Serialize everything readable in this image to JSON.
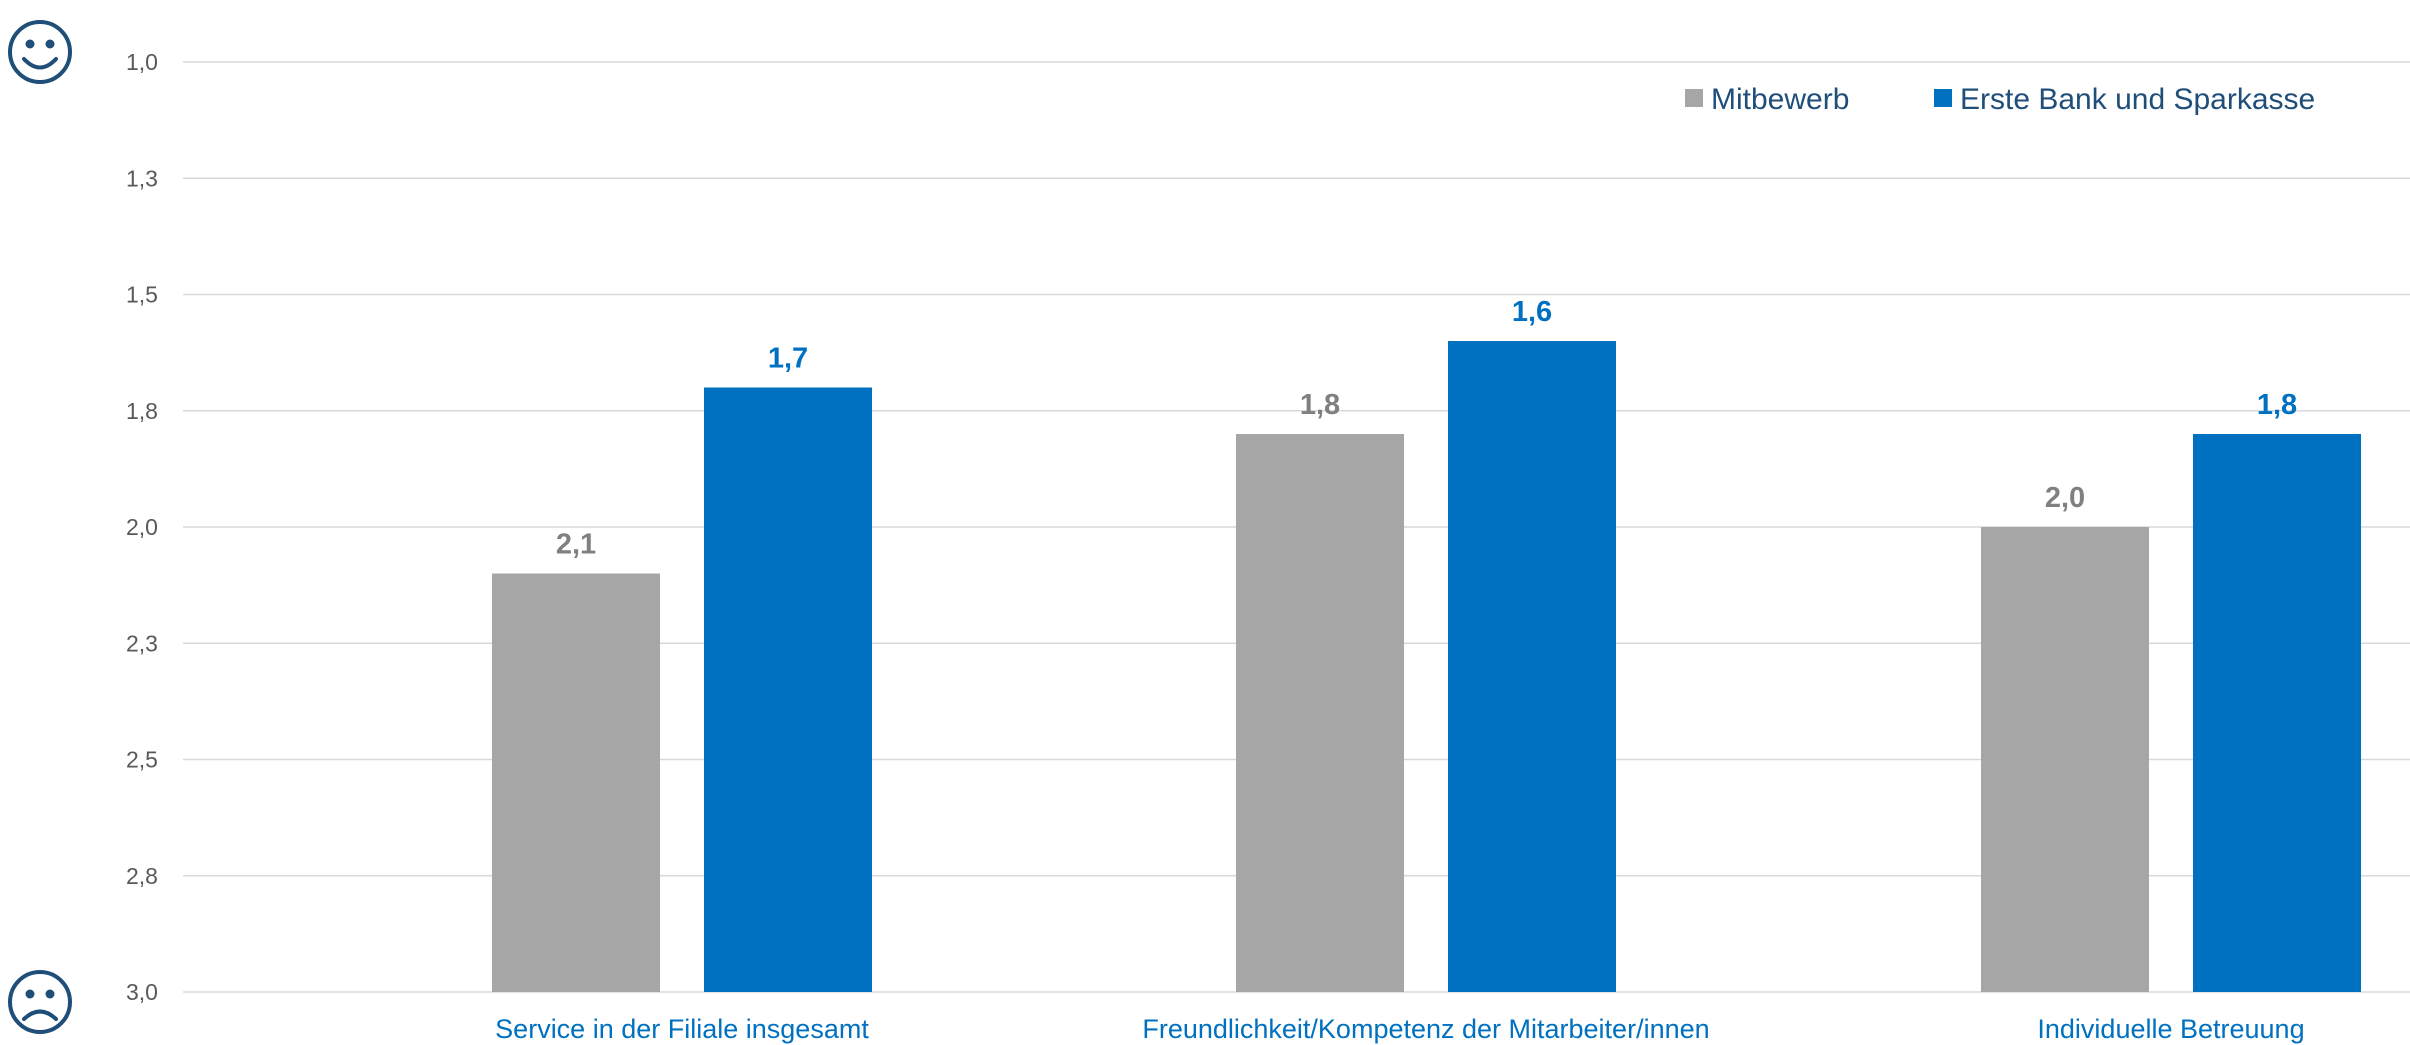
{
  "chart_data": {
    "type": "bar",
    "title": "",
    "xlabel": "",
    "ylabel": "",
    "y_inverted": true,
    "ylim": [
      1.0,
      3.0
    ],
    "y_ticks": [
      "1,0",
      "1,3",
      "1,5",
      "1,8",
      "2,0",
      "2,3",
      "2,5",
      "2,8",
      "3,0"
    ],
    "grid": true,
    "legend_position": "top-right",
    "top_icon": "smiley-happy-icon",
    "bottom_icon": "smiley-sad-icon",
    "categories": [
      "Service in der Filiale insgesamt",
      "Freundlichkeit/Kompetenz der Mitarbeiter/innen",
      "Individuelle Betreuung"
    ],
    "series": [
      {
        "name": "Mitbewerb",
        "color": "#a6a6a6",
        "label_color": "#808080",
        "values": [
          2.1,
          1.8,
          2.0
        ],
        "labels": [
          "2,1",
          "1,8",
          "2,0"
        ]
      },
      {
        "name": "Erste Bank und Sparkasse",
        "color": "#0070c0",
        "label_color": "#0070c0",
        "values": [
          1.7,
          1.6,
          1.8
        ],
        "labels": [
          "1,7",
          "1,6",
          "1,8"
        ]
      }
    ]
  }
}
